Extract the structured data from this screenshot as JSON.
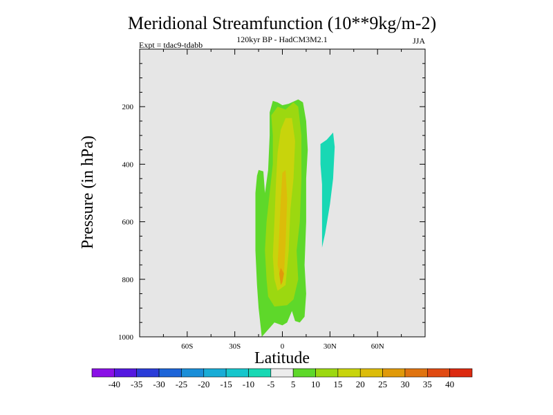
{
  "chart_data": {
    "type": "contour",
    "title": "Meridional Streamfunction (10**9kg/m-2)",
    "subtitle": "120kyr BP - HadCM3M2.1",
    "left_annotation": "Expt = tdac9-tdabb",
    "season": "JJA",
    "xlabel": "Latitude",
    "ylabel": "Pressure (in hPa)",
    "xlim": [
      -90,
      90
    ],
    "ylim": [
      1000,
      0
    ],
    "x_ticks": [
      {
        "value": -60,
        "label": "60S"
      },
      {
        "value": -30,
        "label": "30S"
      },
      {
        "value": 0,
        "label": "0"
      },
      {
        "value": 30,
        "label": "30N"
      },
      {
        "value": 60,
        "label": "60N"
      }
    ],
    "y_ticks": [
      {
        "value": 200,
        "label": "200"
      },
      {
        "value": 400,
        "label": "400"
      },
      {
        "value": 600,
        "label": "600"
      },
      {
        "value": 800,
        "label": "800"
      },
      {
        "value": 1000,
        "label": "1000"
      }
    ],
    "missing_color": "#e6e6e6",
    "colorbar": {
      "labels": [
        "-40",
        "-35",
        "-30",
        "-25",
        "-20",
        "-15",
        "-10",
        "-5",
        "5",
        "10",
        "15",
        "20",
        "25",
        "30",
        "35",
        "40"
      ],
      "colors": [
        "#8a10e6",
        "#5418e0",
        "#2a3cd8",
        "#1c64d8",
        "#1a8ed8",
        "#18acd6",
        "#16c6cc",
        "#18d8b4",
        "#ececec",
        "#5ed82a",
        "#9cd810",
        "#c8d40c",
        "#dcbc0a",
        "#e09a0a",
        "#e07410",
        "#e04a12",
        "#dc2a10"
      ]
    },
    "contour_regions": [
      {
        "level": "5 to 10",
        "color": "#5ed82a",
        "polygon": [
          [
            -13,
            1000
          ],
          [
            -15,
            900
          ],
          [
            -16,
            820
          ],
          [
            -17,
            700
          ],
          [
            -17,
            600
          ],
          [
            -17,
            500
          ],
          [
            -16,
            440
          ],
          [
            -15,
            420
          ],
          [
            -12,
            425
          ],
          [
            -11,
            500
          ],
          [
            -9,
            420
          ],
          [
            -8,
            300
          ],
          [
            -8,
            220
          ],
          [
            -6,
            180
          ],
          [
            -3,
            185
          ],
          [
            0,
            195
          ],
          [
            4,
            190
          ],
          [
            10,
            175
          ],
          [
            13,
            185
          ],
          [
            15,
            250
          ],
          [
            16,
            350
          ],
          [
            15,
            450
          ],
          [
            15,
            600
          ],
          [
            14,
            750
          ],
          [
            15,
            850
          ],
          [
            14,
            930
          ],
          [
            11,
            950
          ],
          [
            8,
            945
          ],
          [
            6,
            910
          ],
          [
            3,
            950
          ],
          [
            0,
            960
          ],
          [
            -5,
            950
          ]
        ]
      },
      {
        "level": "10 to 15",
        "color": "#9cd810",
        "polygon": [
          [
            -5,
            895
          ],
          [
            -9,
            860
          ],
          [
            -10,
            800
          ],
          [
            -11,
            700
          ],
          [
            -10,
            600
          ],
          [
            -8,
            500
          ],
          [
            -6,
            400
          ],
          [
            -6,
            300
          ],
          [
            -7,
            230
          ],
          [
            -3,
            200
          ],
          [
            2,
            210
          ],
          [
            7,
            185
          ],
          [
            10,
            200
          ],
          [
            12,
            300
          ],
          [
            12,
            450
          ],
          [
            11,
            600
          ],
          [
            9,
            700
          ],
          [
            10,
            800
          ],
          [
            7,
            870
          ],
          [
            3,
            890
          ]
        ]
      },
      {
        "level": "15 to 20",
        "color": "#c8d40c",
        "polygon": [
          [
            -3,
            840
          ],
          [
            -5,
            800
          ],
          [
            -6,
            720
          ],
          [
            -5,
            600
          ],
          [
            -4,
            460
          ],
          [
            -3,
            360
          ],
          [
            -1,
            280
          ],
          [
            2,
            240
          ],
          [
            6,
            240
          ],
          [
            8,
            320
          ],
          [
            7,
            450
          ],
          [
            5,
            560
          ],
          [
            4,
            700
          ],
          [
            2,
            820
          ]
        ]
      },
      {
        "level": "20 to 25",
        "color": "#dcbc0a",
        "polygon": [
          [
            -1,
            800
          ],
          [
            -3,
            750
          ],
          [
            -2,
            640
          ],
          [
            -1,
            520
          ],
          [
            0,
            430
          ],
          [
            2,
            420
          ],
          [
            3,
            520
          ],
          [
            2,
            680
          ],
          [
            1,
            780
          ]
        ]
      },
      {
        "level": "25 to 30",
        "color": "#e09a0a",
        "polygon": [
          [
            -1,
            820
          ],
          [
            -2,
            780
          ],
          [
            -1,
            760
          ],
          [
            1,
            780
          ],
          [
            0,
            810
          ]
        ]
      },
      {
        "level": "-5 to -10",
        "color": "#18d8b4",
        "polygon": [
          [
            25,
            470
          ],
          [
            24,
            400
          ],
          [
            24,
            330
          ],
          [
            28,
            315
          ],
          [
            32,
            290
          ],
          [
            33,
            340
          ],
          [
            32,
            450
          ],
          [
            30,
            540
          ],
          [
            27,
            640
          ],
          [
            25,
            690
          ]
        ]
      }
    ]
  }
}
